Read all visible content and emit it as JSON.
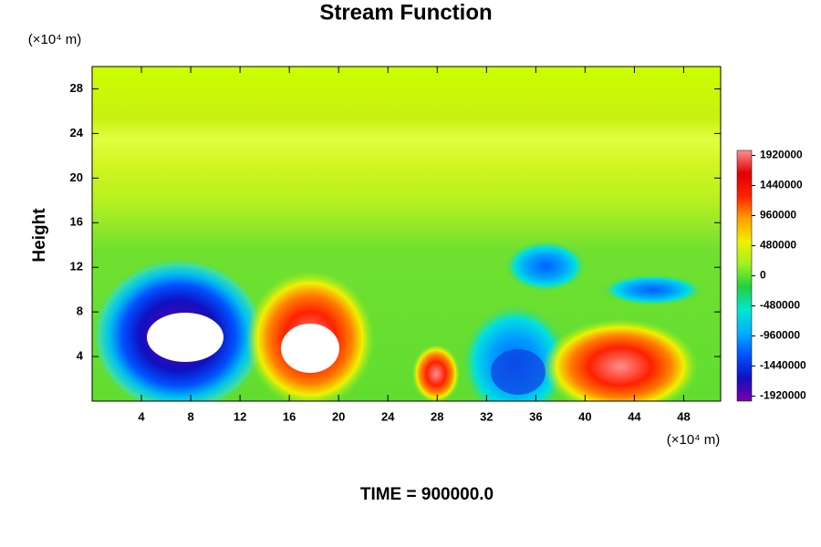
{
  "chart_data": {
    "type": "contour",
    "title": "Stream Function",
    "y_label": "Height",
    "x_unit": "(×10⁴ m)",
    "y_unit": "(×10⁴ m)",
    "footer": "TIME = 900000.0",
    "xlim": [
      0,
      51
    ],
    "xticks": [
      4,
      8,
      12,
      16,
      20,
      24,
      28,
      32,
      36,
      40,
      44,
      48
    ],
    "ylim": [
      0,
      30
    ],
    "yticks": [
      4,
      8,
      12,
      16,
      20,
      24,
      28
    ],
    "clim": [
      -2000000,
      2000000
    ],
    "cticks": [
      -1920000,
      -1440000,
      -960000,
      -480000,
      0,
      480000,
      960000,
      1440000,
      1920000
    ],
    "colormap": [
      "#7a00a8",
      "#1010c0",
      "#0050ff",
      "#00b0ff",
      "#00e8d0",
      "#20d040",
      "#a0f020",
      "#f0f000",
      "#ffa000",
      "#ff2000",
      "#e00000",
      "#ff9090"
    ]
  }
}
